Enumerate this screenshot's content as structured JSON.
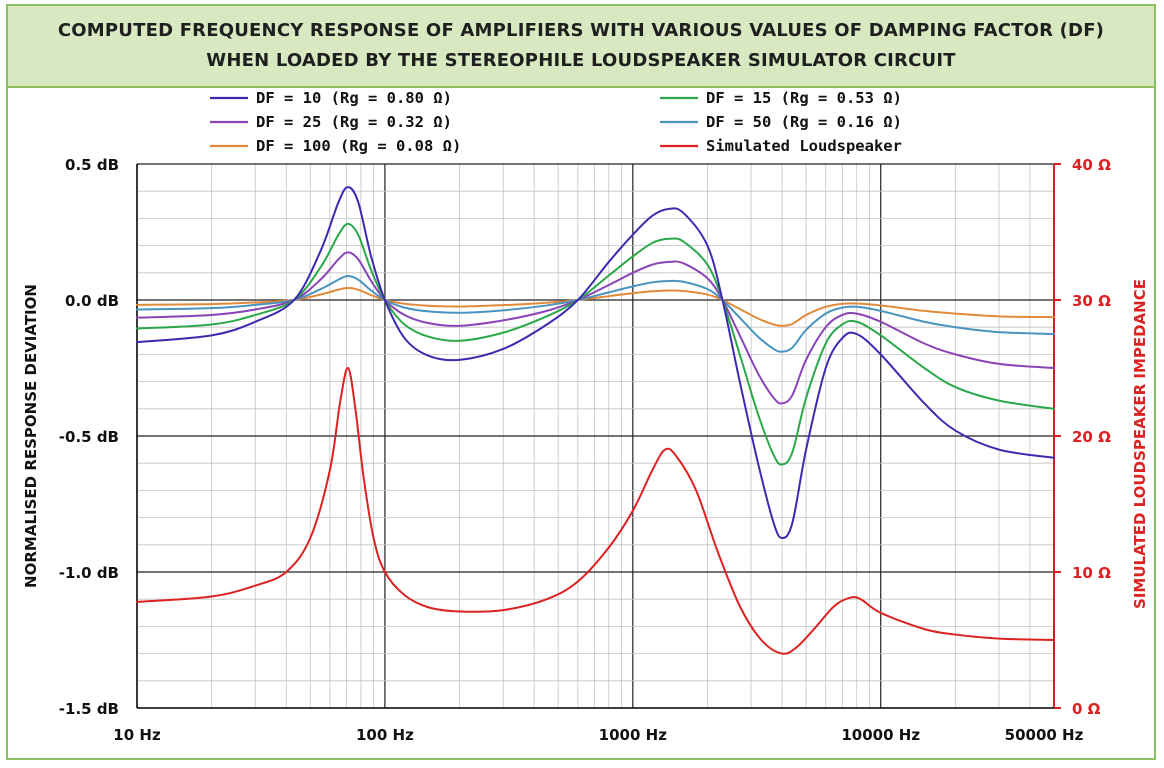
{
  "title": {
    "line1": "COMPUTED FREQUENCY RESPONSE OF AMPLIFIERS WITH VARIOUS VALUES OF DAMPING FACTOR (DF)",
    "line2": "WHEN LOADED BY THE STEREOPHILE LOUDSPEAKER SIMULATOR CIRCUIT"
  },
  "chart_data": {
    "type": "line",
    "x_scale": "log",
    "xlim": [
      10,
      50000
    ],
    "ylim": [
      -1.5,
      0.5
    ],
    "y2lim": [
      0,
      40
    ],
    "grid": true,
    "legend_placement": "top",
    "ylabel": "NORMALISED RESPONSE DEVIATION",
    "y2label": "SIMULATED LOUDSPEAKER IMPEDANCE",
    "x_ticks": [
      {
        "value": 10,
        "label": "10 Hz"
      },
      {
        "value": 100,
        "label": "100 Hz"
      },
      {
        "value": 1000,
        "label": "1000 Hz"
      },
      {
        "value": 10000,
        "label": "10000 Hz"
      },
      {
        "value": 50000,
        "label": "50000 Hz"
      }
    ],
    "y_ticks": [
      {
        "value": 0.5,
        "label": "0.5 dB"
      },
      {
        "value": 0.0,
        "label": "0.0 dB"
      },
      {
        "value": -0.5,
        "label": "-0.5 dB"
      },
      {
        "value": -1.0,
        "label": "-1.0 dB"
      },
      {
        "value": -1.5,
        "label": "-1.5 dB"
      }
    ],
    "y2_ticks": [
      {
        "value": 40,
        "label": "40 Ω"
      },
      {
        "value": 30,
        "label": "30 Ω"
      },
      {
        "value": 20,
        "label": "20 Ω"
      },
      {
        "value": 10,
        "label": "10 Ω"
      },
      {
        "value": 0,
        "label": "0 Ω"
      }
    ],
    "series": [
      {
        "name": "DF =  10 (Rg = 0.80 Ω)",
        "color": "#3b2bb0",
        "axis": "left",
        "points": [
          [
            10,
            -0.155
          ],
          [
            20,
            -0.13
          ],
          [
            30,
            -0.08
          ],
          [
            43,
            0.0
          ],
          [
            55,
            0.18
          ],
          [
            65,
            0.36
          ],
          [
            71,
            0.415
          ],
          [
            78,
            0.36
          ],
          [
            88,
            0.16
          ],
          [
            100,
            0.0
          ],
          [
            120,
            -0.14
          ],
          [
            150,
            -0.205
          ],
          [
            200,
            -0.22
          ],
          [
            300,
            -0.18
          ],
          [
            450,
            -0.09
          ],
          [
            600,
            0.0
          ],
          [
            800,
            0.14
          ],
          [
            1000,
            0.24
          ],
          [
            1200,
            0.31
          ],
          [
            1400,
            0.335
          ],
          [
            1600,
            0.32
          ],
          [
            2000,
            0.2
          ],
          [
            2300,
            0.0
          ],
          [
            2700,
            -0.3
          ],
          [
            3200,
            -0.6
          ],
          [
            3700,
            -0.82
          ],
          [
            4000,
            -0.875
          ],
          [
            4400,
            -0.82
          ],
          [
            5000,
            -0.55
          ],
          [
            6000,
            -0.25
          ],
          [
            7000,
            -0.14
          ],
          [
            8000,
            -0.125
          ],
          [
            10000,
            -0.2
          ],
          [
            15000,
            -0.38
          ],
          [
            20000,
            -0.48
          ],
          [
            30000,
            -0.55
          ],
          [
            50000,
            -0.58
          ]
        ]
      },
      {
        "name": "DF =  15 (Rg = 0.53 Ω)",
        "color": "#2aa84a",
        "axis": "left",
        "points": [
          [
            10,
            -0.105
          ],
          [
            20,
            -0.09
          ],
          [
            30,
            -0.055
          ],
          [
            43,
            0.0
          ],
          [
            55,
            0.12
          ],
          [
            65,
            0.24
          ],
          [
            71,
            0.28
          ],
          [
            78,
            0.24
          ],
          [
            88,
            0.11
          ],
          [
            100,
            0.0
          ],
          [
            120,
            -0.09
          ],
          [
            150,
            -0.135
          ],
          [
            200,
            -0.15
          ],
          [
            300,
            -0.12
          ],
          [
            450,
            -0.06
          ],
          [
            600,
            0.0
          ],
          [
            800,
            0.09
          ],
          [
            1000,
            0.16
          ],
          [
            1200,
            0.21
          ],
          [
            1400,
            0.225
          ],
          [
            1600,
            0.215
          ],
          [
            2000,
            0.13
          ],
          [
            2300,
            0.0
          ],
          [
            2700,
            -0.2
          ],
          [
            3200,
            -0.42
          ],
          [
            3700,
            -0.57
          ],
          [
            4000,
            -0.605
          ],
          [
            4400,
            -0.56
          ],
          [
            5000,
            -0.36
          ],
          [
            6000,
            -0.16
          ],
          [
            7000,
            -0.09
          ],
          [
            8000,
            -0.08
          ],
          [
            10000,
            -0.13
          ],
          [
            15000,
            -0.25
          ],
          [
            20000,
            -0.32
          ],
          [
            30000,
            -0.37
          ],
          [
            50000,
            -0.4
          ]
        ]
      },
      {
        "name": "DF =  25 (Rg = 0.32 Ω)",
        "color": "#8a44b8",
        "axis": "left",
        "points": [
          [
            10,
            -0.065
          ],
          [
            20,
            -0.055
          ],
          [
            30,
            -0.035
          ],
          [
            43,
            0.0
          ],
          [
            55,
            0.075
          ],
          [
            65,
            0.15
          ],
          [
            71,
            0.175
          ],
          [
            78,
            0.15
          ],
          [
            88,
            0.07
          ],
          [
            100,
            0.0
          ],
          [
            120,
            -0.055
          ],
          [
            150,
            -0.085
          ],
          [
            200,
            -0.095
          ],
          [
            300,
            -0.075
          ],
          [
            450,
            -0.04
          ],
          [
            600,
            0.0
          ],
          [
            800,
            0.055
          ],
          [
            1000,
            0.1
          ],
          [
            1200,
            0.13
          ],
          [
            1400,
            0.14
          ],
          [
            1600,
            0.135
          ],
          [
            2000,
            0.08
          ],
          [
            2300,
            0.0
          ],
          [
            2700,
            -0.13
          ],
          [
            3200,
            -0.27
          ],
          [
            3700,
            -0.36
          ],
          [
            4000,
            -0.38
          ],
          [
            4400,
            -0.35
          ],
          [
            5000,
            -0.22
          ],
          [
            6000,
            -0.1
          ],
          [
            7000,
            -0.055
          ],
          [
            8000,
            -0.05
          ],
          [
            10000,
            -0.08
          ],
          [
            15000,
            -0.16
          ],
          [
            20000,
            -0.2
          ],
          [
            30000,
            -0.235
          ],
          [
            50000,
            -0.25
          ]
        ]
      },
      {
        "name": "DF =  50 (Rg = 0.16 Ω)",
        "color": "#4a94c0",
        "axis": "left",
        "points": [
          [
            10,
            -0.035
          ],
          [
            20,
            -0.03
          ],
          [
            30,
            -0.018
          ],
          [
            43,
            0.0
          ],
          [
            55,
            0.04
          ],
          [
            65,
            0.075
          ],
          [
            71,
            0.088
          ],
          [
            78,
            0.075
          ],
          [
            88,
            0.035
          ],
          [
            100,
            0.0
          ],
          [
            120,
            -0.028
          ],
          [
            150,
            -0.042
          ],
          [
            200,
            -0.047
          ],
          [
            300,
            -0.038
          ],
          [
            450,
            -0.02
          ],
          [
            600,
            0.0
          ],
          [
            800,
            0.028
          ],
          [
            1000,
            0.05
          ],
          [
            1200,
            0.065
          ],
          [
            1400,
            0.07
          ],
          [
            1600,
            0.067
          ],
          [
            2000,
            0.04
          ],
          [
            2300,
            0.0
          ],
          [
            2700,
            -0.065
          ],
          [
            3200,
            -0.135
          ],
          [
            3700,
            -0.18
          ],
          [
            4000,
            -0.19
          ],
          [
            4400,
            -0.175
          ],
          [
            5000,
            -0.11
          ],
          [
            6000,
            -0.05
          ],
          [
            7000,
            -0.028
          ],
          [
            8000,
            -0.025
          ],
          [
            10000,
            -0.04
          ],
          [
            15000,
            -0.08
          ],
          [
            20000,
            -0.1
          ],
          [
            30000,
            -0.118
          ],
          [
            50000,
            -0.125
          ]
        ]
      },
      {
        "name": "DF = 100 (Rg = 0.08 Ω)",
        "color": "#e08a3a",
        "axis": "left",
        "points": [
          [
            10,
            -0.018
          ],
          [
            20,
            -0.015
          ],
          [
            30,
            -0.009
          ],
          [
            43,
            0.0
          ],
          [
            55,
            0.02
          ],
          [
            65,
            0.038
          ],
          [
            71,
            0.044
          ],
          [
            78,
            0.038
          ],
          [
            88,
            0.018
          ],
          [
            100,
            0.0
          ],
          [
            120,
            -0.014
          ],
          [
            150,
            -0.021
          ],
          [
            200,
            -0.024
          ],
          [
            300,
            -0.019
          ],
          [
            450,
            -0.01
          ],
          [
            600,
            0.0
          ],
          [
            800,
            0.014
          ],
          [
            1000,
            0.025
          ],
          [
            1200,
            0.032
          ],
          [
            1400,
            0.035
          ],
          [
            1600,
            0.033
          ],
          [
            2000,
            0.02
          ],
          [
            2300,
            0.0
          ],
          [
            2700,
            -0.033
          ],
          [
            3200,
            -0.068
          ],
          [
            3700,
            -0.09
          ],
          [
            4000,
            -0.095
          ],
          [
            4400,
            -0.088
          ],
          [
            5000,
            -0.055
          ],
          [
            6000,
            -0.025
          ],
          [
            7000,
            -0.014
          ],
          [
            8000,
            -0.013
          ],
          [
            10000,
            -0.02
          ],
          [
            15000,
            -0.04
          ],
          [
            20000,
            -0.05
          ],
          [
            30000,
            -0.06
          ],
          [
            50000,
            -0.063
          ]
        ]
      },
      {
        "name": "Simulated Loudspeaker",
        "color": "#dd2222",
        "axis": "right",
        "points": [
          [
            10,
            7.8
          ],
          [
            20,
            8.2
          ],
          [
            30,
            9.0
          ],
          [
            40,
            10.0
          ],
          [
            50,
            12.5
          ],
          [
            60,
            17.5
          ],
          [
            66,
            22.5
          ],
          [
            71,
            25.0
          ],
          [
            76,
            22.0
          ],
          [
            82,
            17.0
          ],
          [
            90,
            12.5
          ],
          [
            100,
            10.0
          ],
          [
            120,
            8.3
          ],
          [
            150,
            7.4
          ],
          [
            200,
            7.1
          ],
          [
            300,
            7.2
          ],
          [
            450,
            8.0
          ],
          [
            600,
            9.3
          ],
          [
            800,
            11.8
          ],
          [
            1000,
            14.5
          ],
          [
            1200,
            17.5
          ],
          [
            1350,
            19.0
          ],
          [
            1500,
            18.5
          ],
          [
            1800,
            16.0
          ],
          [
            2200,
            11.5
          ],
          [
            2700,
            7.5
          ],
          [
            3300,
            5.0
          ],
          [
            4000,
            4.0
          ],
          [
            4600,
            4.5
          ],
          [
            5500,
            6.0
          ],
          [
            6500,
            7.5
          ],
          [
            7500,
            8.1
          ],
          [
            8300,
            8.0
          ],
          [
            10000,
            7.0
          ],
          [
            15000,
            5.8
          ],
          [
            20000,
            5.4
          ],
          [
            30000,
            5.1
          ],
          [
            50000,
            5.0
          ]
        ]
      }
    ]
  }
}
